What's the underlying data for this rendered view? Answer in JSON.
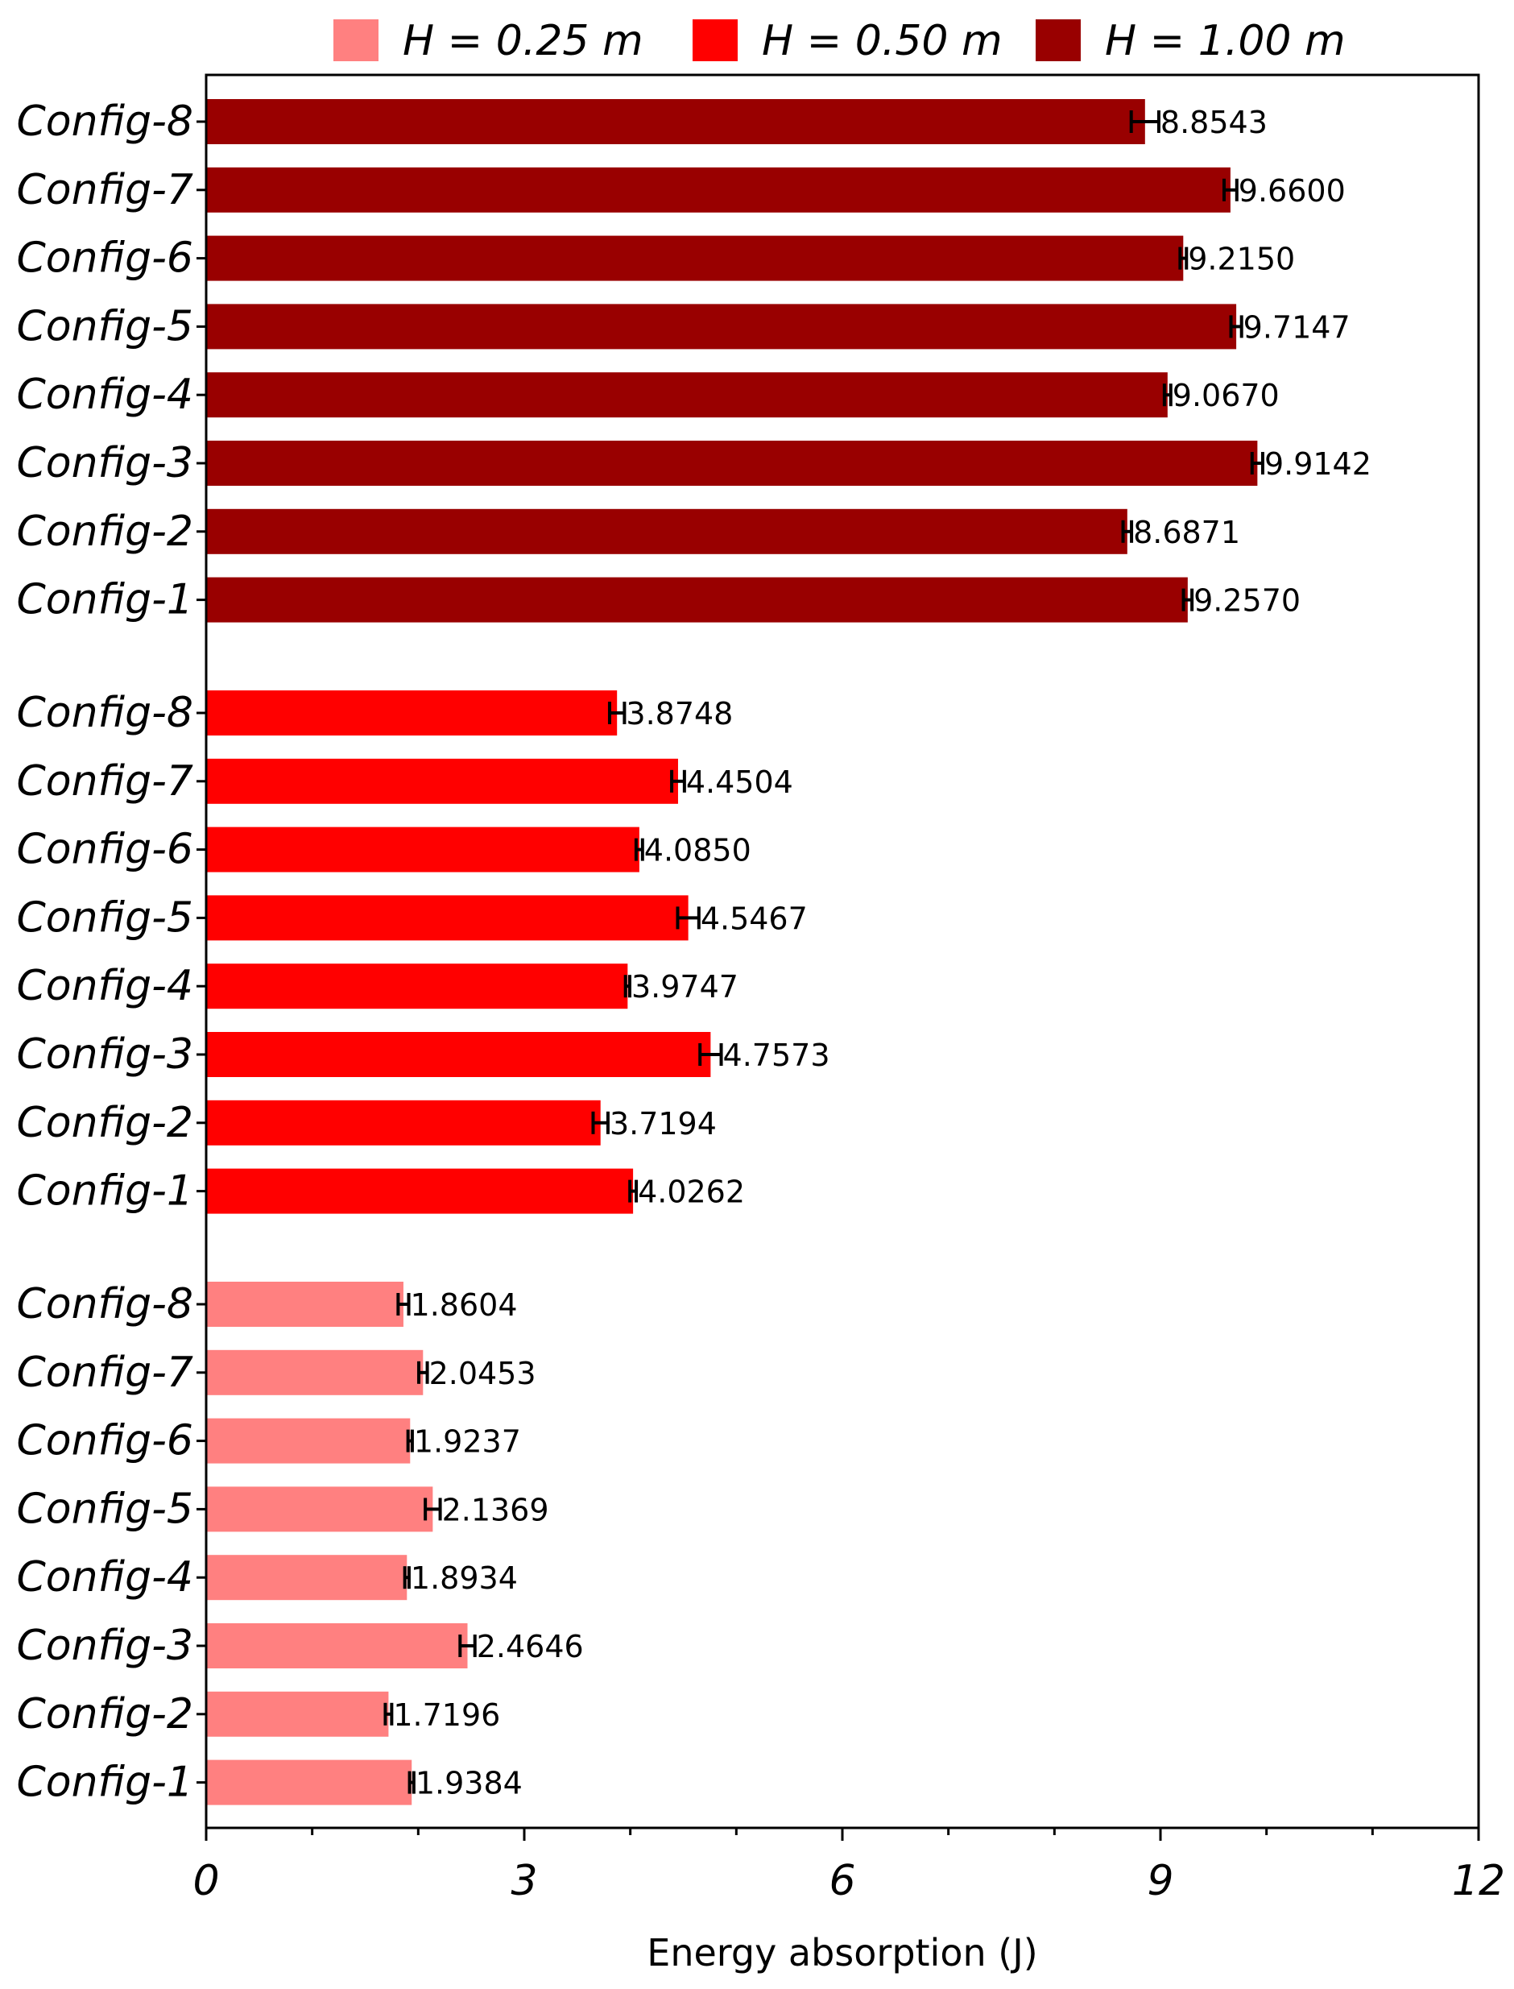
{
  "chart_data": {
    "type": "bar",
    "orientation": "horizontal",
    "xlabel": "Energy absorption (J)",
    "ylabel": "",
    "xlim": [
      0,
      12
    ],
    "x_ticks": [
      "0",
      "3",
      "6",
      "9",
      "12"
    ],
    "x_minor_tick_step": 1,
    "grid": false,
    "legend_position": "top",
    "colors": {
      "H = 0.25 m": "#ff8080",
      "H = 0.50 m": "#ff0000",
      "H = 1.00 m": "#990000"
    },
    "legend": [
      "H = 0.25 m",
      "H = 0.50 m",
      "H = 1.00 m"
    ],
    "groups": [
      {
        "name": "H = 1.00 m",
        "color": "#990000",
        "categories": [
          "Config-8",
          "Config-7",
          "Config-6",
          "Config-5",
          "Config-4",
          "Config-3",
          "Config-2",
          "Config-1"
        ],
        "values": [
          8.8543,
          9.66,
          9.215,
          9.7147,
          9.067,
          9.9142,
          8.6871,
          9.257
        ],
        "labels": [
          "8.8543",
          "9.6600",
          "9.2150",
          "9.7147",
          "9.0670",
          "9.9142",
          "8.6871",
          "9.2570"
        ],
        "errors": [
          0.13,
          0.06,
          0.03,
          0.05,
          0.03,
          0.05,
          0.04,
          0.04
        ]
      },
      {
        "name": "H = 0.50 m",
        "color": "#ff0000",
        "categories": [
          "Config-8",
          "Config-7",
          "Config-6",
          "Config-5",
          "Config-4",
          "Config-3",
          "Config-2",
          "Config-1"
        ],
        "values": [
          3.8748,
          4.4504,
          4.085,
          4.5467,
          3.9747,
          4.7573,
          3.7194,
          4.0262
        ],
        "labels": [
          "3.8748",
          "4.4504",
          "4.0850",
          "4.5467",
          "3.9747",
          "4.7573",
          "3.7194",
          "4.0262"
        ],
        "errors": [
          0.07,
          0.06,
          0.03,
          0.1,
          0.02,
          0.1,
          0.07,
          0.03
        ]
      },
      {
        "name": "H = 0.25 m",
        "color": "#ff8080",
        "categories": [
          "Config-8",
          "Config-7",
          "Config-6",
          "Config-5",
          "Config-4",
          "Config-3",
          "Config-2",
          "Config-1"
        ],
        "values": [
          1.8604,
          2.0453,
          1.9237,
          2.1369,
          1.8934,
          2.4646,
          1.7196,
          1.9384
        ],
        "labels": [
          "1.8604",
          "2.0453",
          "1.9237",
          "2.1369",
          "1.8934",
          "2.4646",
          "1.7196",
          "1.9384"
        ],
        "errors": [
          0.05,
          0.04,
          0.02,
          0.07,
          0.02,
          0.07,
          0.03,
          0.02
        ]
      }
    ]
  }
}
